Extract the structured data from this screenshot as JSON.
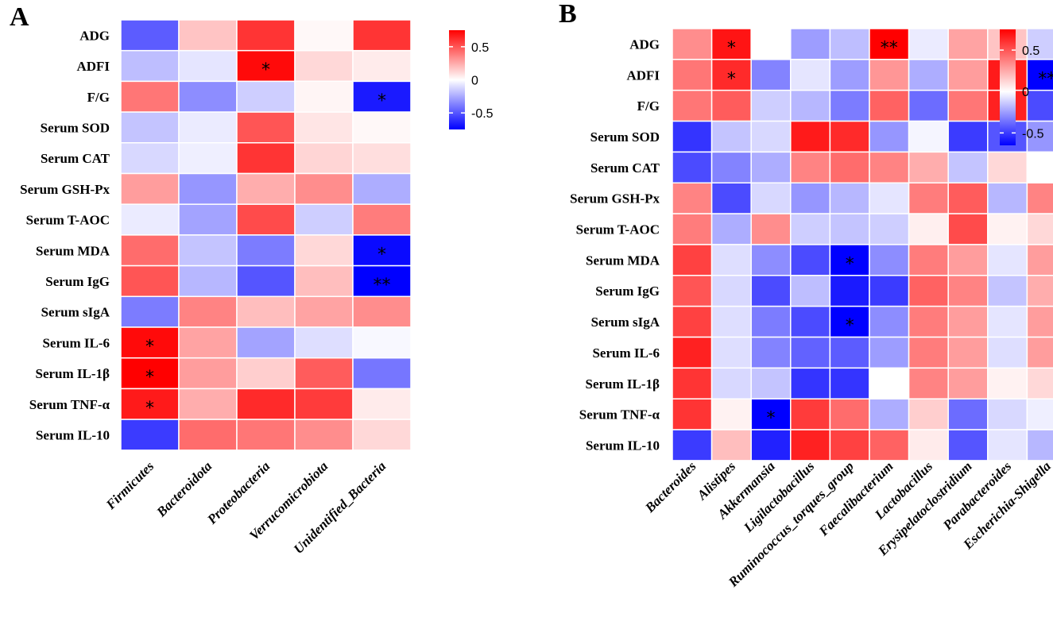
{
  "chart_data": [
    {
      "type": "heatmap",
      "panel": "A",
      "rows": [
        "ADG",
        "ADFI",
        "F/G",
        "Serum SOD",
        "Serum CAT",
        "Serum GSH-Px",
        "Serum T-AOC",
        "Serum MDA",
        "Serum IgG",
        "Serum sIgA",
        "Serum IL-6",
        "Serum IL-1β",
        "Serum TNF-α",
        "Serum IL-10"
      ],
      "columns": [
        "Firmicutes",
        "Bacteroidota",
        "Proteobacteria",
        "Verrucomicrobiota",
        "Unidentified_Bacteria"
      ],
      "values": [
        [
          -0.5,
          0.18,
          0.62,
          0.02,
          0.62
        ],
        [
          -0.2,
          -0.08,
          0.75,
          0.12,
          0.06
        ],
        [
          0.42,
          -0.35,
          -0.15,
          0.03,
          -0.7
        ],
        [
          -0.18,
          -0.06,
          0.52,
          0.08,
          0.02
        ],
        [
          -0.12,
          -0.05,
          0.62,
          0.13,
          0.1
        ],
        [
          0.3,
          -0.32,
          0.25,
          0.35,
          -0.25
        ],
        [
          -0.06,
          -0.28,
          0.55,
          -0.15,
          0.4
        ],
        [
          0.45,
          -0.18,
          -0.4,
          0.12,
          -0.75
        ],
        [
          0.52,
          -0.22,
          -0.52,
          0.2,
          -0.78
        ],
        [
          -0.4,
          0.38,
          0.2,
          0.28,
          0.35
        ],
        [
          0.75,
          0.28,
          -0.28,
          -0.1,
          -0.02
        ],
        [
          0.78,
          0.3,
          0.15,
          0.5,
          -0.42
        ],
        [
          0.7,
          0.25,
          0.65,
          0.6,
          0.06
        ],
        [
          -0.6,
          0.45,
          0.42,
          0.35,
          0.12
        ]
      ],
      "stars": [
        [
          "",
          "",
          "",
          "",
          ""
        ],
        [
          "",
          "",
          "*",
          "",
          ""
        ],
        [
          "",
          "",
          "",
          "",
          "*"
        ],
        [
          "",
          "",
          "",
          "",
          ""
        ],
        [
          "",
          "",
          "",
          "",
          ""
        ],
        [
          "",
          "",
          "",
          "",
          ""
        ],
        [
          "",
          "",
          "",
          "",
          ""
        ],
        [
          "",
          "",
          "",
          "",
          "*"
        ],
        [
          "",
          "",
          "",
          "",
          "**"
        ],
        [
          "",
          "",
          "",
          "",
          ""
        ],
        [
          "*",
          "",
          "",
          "",
          ""
        ],
        [
          "*",
          "",
          "",
          "",
          ""
        ],
        [
          "*",
          "",
          "",
          "",
          ""
        ],
        [
          "",
          "",
          "",
          "",
          ""
        ]
      ],
      "colorbar": {
        "ticks": [
          0.5,
          0,
          -0.5
        ],
        "tick_labels": [
          "0.5",
          "0",
          "-0.5"
        ],
        "range": [
          -0.75,
          0.75
        ]
      }
    },
    {
      "type": "heatmap",
      "panel": "B",
      "rows": [
        "ADG",
        "ADFI",
        "F/G",
        "Serum SOD",
        "Serum CAT",
        "Serum GSH-Px",
        "Serum T-AOC",
        "Serum MDA",
        "Serum IgG",
        "Serum sIgA",
        "Serum IL-6",
        "Serum IL-1β",
        "Serum TNF-α",
        "Serum IL-10"
      ],
      "columns": [
        "Bacteroides",
        "Alistipes",
        "Akkermansia",
        "Ligilactobacillus",
        "Ruminococcus_torques_group",
        "Faecalibacterium",
        "Lactobacillus",
        "Erysipelatoclostridium",
        "Parabacteroides",
        "Escherichia-Shigella"
      ],
      "values": [
        [
          0.35,
          0.72,
          0.0,
          -0.3,
          -0.2,
          0.78,
          -0.06,
          0.28,
          0.18,
          -0.15
        ],
        [
          0.42,
          0.65,
          -0.38,
          -0.08,
          -0.3,
          0.32,
          -0.25,
          0.3,
          0.7,
          -0.8
        ],
        [
          0.42,
          0.5,
          -0.15,
          -0.22,
          -0.4,
          0.48,
          -0.45,
          0.42,
          0.68,
          -0.55
        ],
        [
          -0.62,
          -0.18,
          -0.12,
          0.7,
          0.65,
          -0.32,
          -0.03,
          -0.6,
          -0.52,
          -0.32
        ],
        [
          -0.55,
          -0.38,
          -0.25,
          0.38,
          0.45,
          0.38,
          0.25,
          -0.18,
          0.12,
          0.0
        ],
        [
          0.38,
          -0.55,
          -0.12,
          -0.32,
          -0.22,
          -0.08,
          0.4,
          0.5,
          -0.22,
          0.38
        ],
        [
          0.4,
          -0.25,
          0.35,
          -0.15,
          -0.18,
          -0.15,
          0.05,
          0.55,
          0.04,
          0.12
        ],
        [
          0.58,
          -0.1,
          -0.35,
          -0.55,
          -0.78,
          -0.35,
          0.4,
          0.3,
          -0.08,
          0.3
        ],
        [
          0.52,
          -0.12,
          -0.55,
          -0.2,
          -0.7,
          -0.6,
          0.48,
          0.38,
          -0.18,
          0.25
        ],
        [
          0.58,
          -0.1,
          -0.4,
          -0.55,
          -0.78,
          -0.35,
          0.4,
          0.3,
          -0.08,
          0.3
        ],
        [
          0.68,
          -0.1,
          -0.38,
          -0.48,
          -0.5,
          -0.3,
          0.4,
          0.3,
          -0.1,
          0.3
        ],
        [
          0.62,
          -0.12,
          -0.18,
          -0.62,
          -0.62,
          0.0,
          0.38,
          0.3,
          0.04,
          0.12
        ],
        [
          0.62,
          0.04,
          -0.85,
          0.6,
          0.45,
          -0.25,
          0.15,
          -0.45,
          -0.12,
          -0.05
        ],
        [
          -0.6,
          0.2,
          -0.68,
          0.68,
          0.58,
          0.48,
          0.06,
          -0.52,
          -0.08,
          -0.22
        ]
      ],
      "stars": [
        [
          "",
          "*",
          "",
          "",
          "",
          "**",
          "",
          "",
          "",
          ""
        ],
        [
          "",
          "*",
          "",
          "",
          "",
          "",
          "",
          "",
          "",
          "**"
        ],
        [
          "",
          "",
          "",
          "",
          "",
          "",
          "",
          "",
          "",
          ""
        ],
        [
          "",
          "",
          "",
          "",
          "",
          "",
          "",
          "",
          "",
          ""
        ],
        [
          "",
          "",
          "",
          "",
          "",
          "",
          "",
          "",
          "",
          ""
        ],
        [
          "",
          "",
          "",
          "",
          "",
          "",
          "",
          "",
          "",
          ""
        ],
        [
          "",
          "",
          "",
          "",
          "",
          "",
          "",
          "",
          "",
          ""
        ],
        [
          "",
          "",
          "",
          "",
          "*",
          "",
          "",
          "",
          "",
          ""
        ],
        [
          "",
          "",
          "",
          "",
          "",
          "",
          "",
          "",
          "",
          ""
        ],
        [
          "",
          "",
          "",
          "",
          "*",
          "",
          "",
          "",
          "",
          ""
        ],
        [
          "",
          "",
          "",
          "",
          "",
          "",
          "",
          "",
          "",
          ""
        ],
        [
          "",
          "",
          "",
          "",
          "",
          "",
          "",
          "",
          "",
          ""
        ],
        [
          "",
          "",
          "*",
          "",
          "",
          "",
          "",
          "",
          "",
          ""
        ],
        [
          "",
          "",
          "",
          "",
          "",
          "",
          "",
          "",
          "",
          ""
        ]
      ],
      "colorbar": {
        "ticks": [
          0.5,
          0,
          -0.5
        ],
        "tick_labels": [
          "0.5",
          "0",
          "-0.5"
        ],
        "range": [
          -0.65,
          0.75
        ]
      }
    }
  ],
  "colors": {
    "positive": "#ff0000",
    "neutral": "#ffffff",
    "negative": "#0000ff"
  }
}
